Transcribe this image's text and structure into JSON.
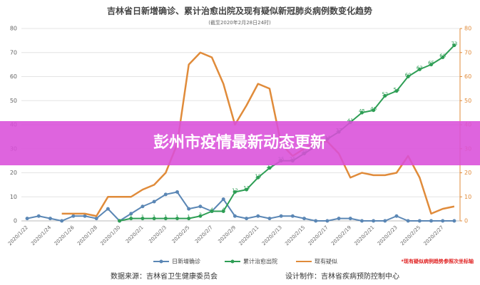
{
  "chart_data": {
    "type": "line",
    "title": "吉林省日新增确诊、累计治愈出院及现有疑似新冠肺炎病例数变化趋势",
    "subtitle": "(截至2020年2月28日24时)",
    "categories": [
      "2020/1/22",
      null,
      "2020/1/24",
      null,
      "2020/1/26",
      null,
      "2020/1/28",
      null,
      "2020/1/30",
      null,
      "2020/2/1",
      null,
      "2020/2/3",
      null,
      "2020/2/5",
      null,
      "2020/2/7",
      null,
      "2020/2/9",
      null,
      "2020/2/11",
      null,
      "2020/2/13",
      null,
      "2020/2/15",
      null,
      "2020/2/17",
      null,
      "2020/2/19",
      null,
      "2020/2/21",
      null,
      "2020/2/23",
      null,
      "2020/2/25",
      null,
      "2020/2/27",
      null
    ],
    "series": [
      {
        "name": "日新增确诊",
        "color": "#5b87b5",
        "values": [
          1,
          2,
          1,
          0,
          2,
          2,
          1,
          5,
          0,
          3,
          6,
          8,
          11,
          12,
          5,
          6,
          4,
          9,
          2,
          1,
          2,
          1,
          2,
          2,
          1,
          0,
          0,
          1,
          1,
          0,
          0,
          0,
          2,
          0,
          0,
          0,
          0,
          0
        ]
      },
      {
        "name": "累计治愈出院",
        "color": "#2e9e55",
        "values": [
          null,
          null,
          null,
          null,
          null,
          null,
          null,
          null,
          0,
          1,
          1,
          1,
          1,
          1,
          1,
          2,
          4,
          4,
          12,
          13,
          18,
          22,
          25,
          25,
          28,
          31,
          34,
          37,
          41,
          45,
          46,
          52,
          54,
          60,
          63,
          65,
          68,
          73
        ]
      },
      {
        "name": "现有疑似",
        "color": "#e08b3a",
        "axis": "y2",
        "values": [
          null,
          null,
          null,
          3,
          3,
          3,
          2,
          10,
          10,
          10,
          13,
          15,
          20,
          32,
          65,
          70,
          68,
          57,
          40,
          48,
          57,
          55,
          32,
          27,
          30,
          33,
          33,
          28,
          18,
          20,
          19,
          19,
          20,
          27,
          18,
          3,
          5,
          6
        ]
      }
    ],
    "ylim": [
      0,
      80
    ],
    "yticks": [
      0,
      10,
      20,
      30,
      40,
      50,
      60,
      70,
      80
    ],
    "y2lim": [
      0,
      80
    ],
    "y2ticks": [
      0,
      10,
      20,
      30,
      40,
      50,
      60,
      70,
      80
    ],
    "note": "*现有疑似病例趋势参照次坐标轴",
    "footer_source": "数据来源：吉林省卫生健康委员会",
    "footer_design": "设计制作：吉林省疾病预防控制中心",
    "banner": "彭州市疫情最新动态更新"
  }
}
